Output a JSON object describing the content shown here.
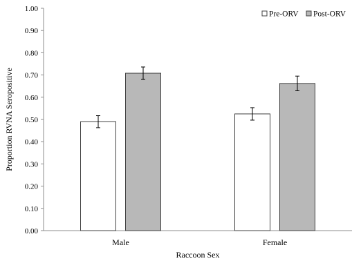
{
  "chart_data": {
    "type": "bar",
    "title": "",
    "xlabel": "Raccoon Sex",
    "ylabel": "Proportion RVNA Seropositive",
    "categories": [
      "Male",
      "Female"
    ],
    "series": [
      {
        "name": "Pre-ORV",
        "values": [
          0.49,
          0.525
        ],
        "errors": [
          0.027,
          0.028
        ],
        "color": "#ffffff",
        "stroke": "#404040"
      },
      {
        "name": "Post-ORV",
        "values": [
          0.708,
          0.662
        ],
        "errors": [
          0.028,
          0.033
        ],
        "color": "#b8b8b8",
        "stroke": "#404040"
      }
    ],
    "ylim": [
      0,
      1
    ],
    "yticks": [
      "0.00",
      "0.10",
      "0.20",
      "0.30",
      "0.40",
      "0.50",
      "0.60",
      "0.70",
      "0.80",
      "0.90",
      "1.00"
    ],
    "grid": false,
    "legend_position": "top-right"
  }
}
